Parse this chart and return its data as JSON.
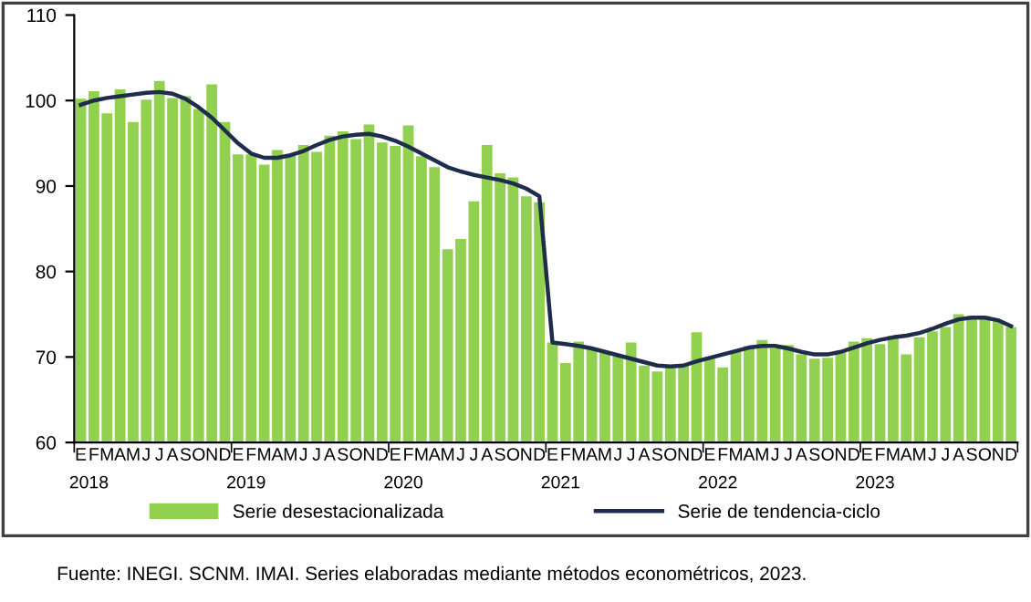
{
  "chart_data": {
    "type": "bar",
    "categories": [
      "E",
      "F",
      "M",
      "A",
      "M",
      "J",
      "J",
      "A",
      "S",
      "O",
      "N",
      "D",
      "E",
      "F",
      "M",
      "A",
      "M",
      "J",
      "J",
      "A",
      "S",
      "O",
      "N",
      "D",
      "E",
      "F",
      "M",
      "A",
      "M",
      "J",
      "J",
      "A",
      "S",
      "O",
      "N",
      "D",
      "E",
      "F",
      "M",
      "A",
      "M",
      "J",
      "J",
      "A",
      "S",
      "O",
      "N",
      "D",
      "E",
      "F",
      "M",
      "A",
      "M",
      "J",
      "J",
      "A",
      "S",
      "O",
      "N",
      "D",
      "E",
      "F",
      "M",
      "A",
      "M",
      "J",
      "J",
      "A",
      "S",
      "O",
      "N",
      "D"
    ],
    "series": [
      {
        "name": "Serie desestacionalizada",
        "color": "#92d050",
        "values": [
          100.2,
          101.1,
          98.5,
          101.3,
          97.5,
          100.1,
          102.3,
          100.3,
          100.5,
          99.0,
          101.9,
          97.5,
          93.7,
          93.7,
          92.5,
          94.2,
          93.7,
          94.8,
          94.0,
          95.9,
          96.4,
          95.5,
          97.2,
          95.1,
          94.7,
          97.1,
          93.5,
          92.2,
          82.6,
          83.8,
          88.2,
          94.8,
          91.5,
          91.0,
          88.8,
          88.1,
          71.7,
          69.3,
          71.8,
          70.9,
          70.5,
          70.1,
          71.7,
          69.0,
          68.3,
          69.0,
          69.2,
          72.9,
          70.0,
          68.8,
          70.7,
          71.3,
          72.0,
          71.0,
          71.4,
          70.3,
          69.8,
          69.9,
          70.7,
          71.8,
          72.2,
          71.5,
          72.5,
          70.3,
          72.3,
          73.0,
          73.5,
          75.0,
          74.8,
          74.8,
          74.3,
          73.5
        ]
      },
      {
        "name": "Serie de tendencia-ciclo",
        "type": "line",
        "color": "#1f2d4d",
        "values": [
          99.5,
          100.0,
          100.3,
          100.5,
          100.7,
          100.9,
          101.0,
          100.8,
          100.2,
          99.2,
          98.0,
          96.5,
          95.0,
          93.8,
          93.3,
          93.3,
          93.6,
          94.1,
          94.8,
          95.4,
          95.8,
          96.0,
          96.1,
          95.8,
          95.3,
          94.6,
          93.8,
          93.0,
          92.2,
          91.7,
          91.3,
          91.0,
          90.7,
          90.3,
          89.7,
          88.8,
          71.7,
          71.5,
          71.3,
          71.0,
          70.6,
          70.2,
          69.8,
          69.4,
          69.0,
          68.9,
          69.0,
          69.5,
          69.9,
          70.3,
          70.7,
          71.1,
          71.3,
          71.3,
          71.0,
          70.6,
          70.3,
          70.3,
          70.6,
          71.1,
          71.6,
          72.0,
          72.3,
          72.5,
          72.8,
          73.3,
          73.9,
          74.4,
          74.6,
          74.6,
          74.3,
          73.6
        ]
      }
    ],
    "ylim": [
      60,
      110
    ],
    "yticks": [
      60,
      70,
      80,
      90,
      100,
      110
    ],
    "grid": false,
    "legend": "bottom",
    "marker": "none",
    "line_style": "solid",
    "annotations": [
      "2018",
      "2019",
      "2020",
      "2021",
      "2022",
      "2023",
      "Fuente: INEGI. SCNM. IMAI. Series elaboradas mediante métodos econométricos, 2023."
    ]
  }
}
